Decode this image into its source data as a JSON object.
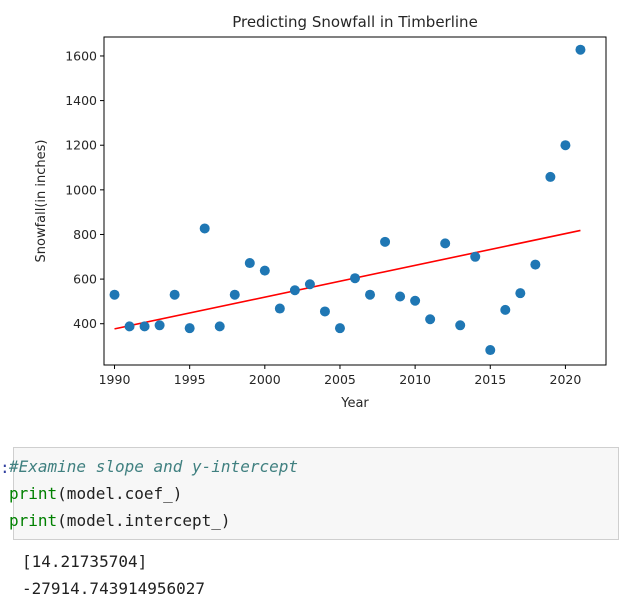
{
  "chart_data": {
    "type": "scatter",
    "title": "Predicting Snowfall in Timberline",
    "xlabel": "Year",
    "ylabel": "Snowfall(in inches)",
    "xlim": [
      1989.3,
      2022.7
    ],
    "ylim": [
      215,
      1685
    ],
    "xticks": [
      1990,
      1995,
      2000,
      2005,
      2010,
      2015,
      2020
    ],
    "yticks": [
      400,
      600,
      800,
      1000,
      1200,
      1400,
      1600
    ],
    "grid": false,
    "point_color": "#1f77b4",
    "points": [
      {
        "x": 1990,
        "y": 530
      },
      {
        "x": 1991,
        "y": 388
      },
      {
        "x": 1992,
        "y": 388
      },
      {
        "x": 1993,
        "y": 393
      },
      {
        "x": 1994,
        "y": 530
      },
      {
        "x": 1995,
        "y": 380
      },
      {
        "x": 1996,
        "y": 827
      },
      {
        "x": 1997,
        "y": 388
      },
      {
        "x": 1998,
        "y": 530
      },
      {
        "x": 1999,
        "y": 672
      },
      {
        "x": 2000,
        "y": 638
      },
      {
        "x": 2001,
        "y": 468
      },
      {
        "x": 2002,
        "y": 550
      },
      {
        "x": 2003,
        "y": 577
      },
      {
        "x": 2004,
        "y": 455
      },
      {
        "x": 2005,
        "y": 380
      },
      {
        "x": 2006,
        "y": 604
      },
      {
        "x": 2007,
        "y": 530
      },
      {
        "x": 2008,
        "y": 767
      },
      {
        "x": 2009,
        "y": 522
      },
      {
        "x": 2010,
        "y": 503
      },
      {
        "x": 2011,
        "y": 420
      },
      {
        "x": 2012,
        "y": 760
      },
      {
        "x": 2013,
        "y": 393
      },
      {
        "x": 2014,
        "y": 700
      },
      {
        "x": 2015,
        "y": 282
      },
      {
        "x": 2016,
        "y": 462
      },
      {
        "x": 2017,
        "y": 537
      },
      {
        "x": 2018,
        "y": 665
      },
      {
        "x": 2019,
        "y": 1058
      },
      {
        "x": 2020,
        "y": 1200
      },
      {
        "x": 2021,
        "y": 1628
      }
    ],
    "regression_line": {
      "color": "#ff0000",
      "points": [
        {
          "x": 1990,
          "y": 377
        },
        {
          "x": 2021,
          "y": 818
        }
      ]
    }
  },
  "cell": {
    "prompt": ":",
    "comment": "#Examine slope and y-intercept",
    "line2_fn": "print",
    "line2_args": "(model.coef_)",
    "line3_fn": "print",
    "line3_args": "(model.intercept_)"
  },
  "output": {
    "line1": "[14.21735704]",
    "line2": "-27914.743914956027"
  }
}
